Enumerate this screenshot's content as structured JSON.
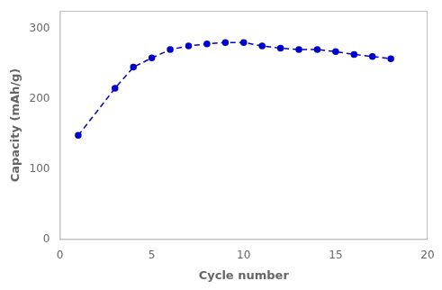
{
  "chart_data": {
    "type": "line",
    "x": [
      1,
      3,
      4,
      5,
      6,
      7,
      8,
      9,
      10,
      11,
      12,
      13,
      14,
      15,
      16,
      17,
      18
    ],
    "values": [
      148,
      215,
      245,
      258,
      270,
      275,
      278,
      280,
      280,
      275,
      272,
      270,
      270,
      267,
      263,
      260,
      257
    ],
    "color": "#0000CC",
    "marker": "circle",
    "line_style": "dashed",
    "xlabel": "Cycle number",
    "ylabel": "Capacity (mAh/g)",
    "xlim": [
      0,
      20
    ],
    "ylim": [
      0,
      325
    ],
    "xticks": [
      0,
      5,
      10,
      15,
      20
    ],
    "yticks": [
      0,
      100,
      200,
      300
    ],
    "grid": false
  }
}
